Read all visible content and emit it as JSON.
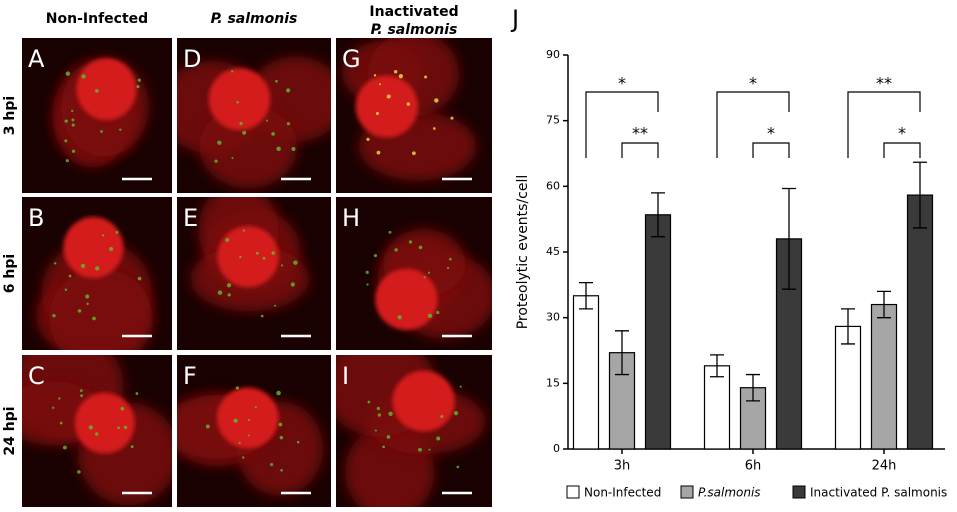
{
  "figure": {
    "column_headers": [
      [
        "Non-Infected"
      ],
      [
        "P. salmonis"
      ],
      [
        "Inactivated",
        "P. salmonis"
      ]
    ],
    "row_labels": [
      "3 hpi",
      "6 hpi",
      "24 hpi"
    ],
    "panel_letters": [
      [
        "A",
        "D",
        "G"
      ],
      [
        "B",
        "E",
        "H"
      ],
      [
        "C",
        "F",
        "I"
      ]
    ]
  },
  "chart_data": {
    "type": "bar",
    "panel_letter": "J",
    "ylabel": "Proteolytic events/cell",
    "categories": [
      "3h",
      "6h",
      "24h"
    ],
    "series": [
      {
        "name": "Non-Infected",
        "color": "#ffffff",
        "values": [
          35,
          19,
          28
        ],
        "errors": [
          3,
          2.5,
          4
        ]
      },
      {
        "name": "P.salmonis",
        "color": "#a6a6a6",
        "values": [
          22,
          14,
          33
        ],
        "errors": [
          5,
          3,
          3
        ]
      },
      {
        "name": "Inactivated P. salmonis",
        "color": "#3a3a3a",
        "values": [
          53.5,
          48,
          58
        ],
        "errors": [
          5,
          11.5,
          7.5
        ]
      }
    ],
    "significance": [
      [
        "*",
        "**"
      ],
      [
        "*",
        "*"
      ],
      [
        "**",
        "*"
      ]
    ],
    "ylim": [
      0,
      90
    ],
    "yticks": [
      0,
      15,
      30,
      45,
      60,
      75,
      90
    ]
  }
}
